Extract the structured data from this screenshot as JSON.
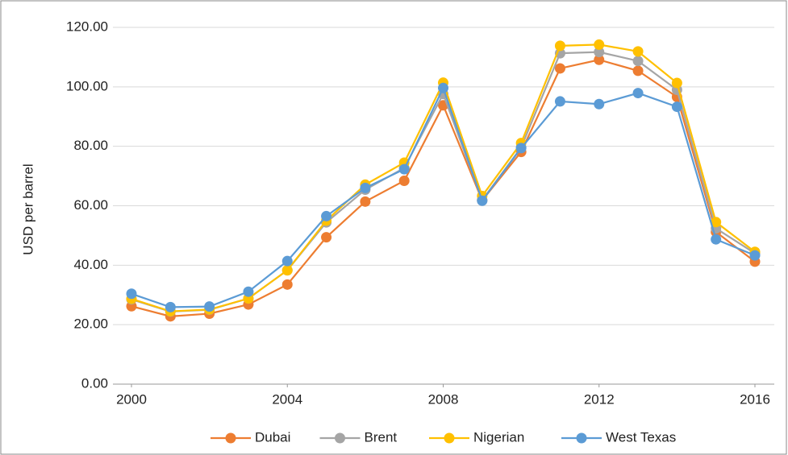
{
  "chart_data": {
    "type": "line",
    "y_label": "USD per barrel",
    "x": [
      2000,
      2001,
      2002,
      2003,
      2004,
      2005,
      2006,
      2007,
      2008,
      2009,
      2010,
      2011,
      2012,
      2013,
      2014,
      2015,
      2016
    ],
    "xlim": [
      2000,
      2016
    ],
    "xticks": [
      2000,
      2004,
      2008,
      2012,
      2016
    ],
    "ylim": [
      0,
      120
    ],
    "yticks": [
      {
        "value": 0,
        "label": "0.00"
      },
      {
        "value": 20,
        "label": "20.00"
      },
      {
        "value": 40,
        "label": "40.00"
      },
      {
        "value": 60,
        "label": "60.00"
      },
      {
        "value": 80,
        "label": "80.00"
      },
      {
        "value": 100,
        "label": "100.00"
      },
      {
        "value": 120,
        "label": "120.00"
      }
    ],
    "grid": true,
    "legend": "bottom",
    "series": [
      {
        "name": "Dubai",
        "color": "#ed7d31",
        "values": [
          26.2,
          22.8,
          23.7,
          26.8,
          33.5,
          49.4,
          61.4,
          68.4,
          93.8,
          61.8,
          78.1,
          106.2,
          109.1,
          105.4,
          96.6,
          51.2,
          41.2
        ]
      },
      {
        "name": "Brent",
        "color": "#a5a5a5",
        "values": [
          28.5,
          24.4,
          25.0,
          28.8,
          38.3,
          54.4,
          65.4,
          72.7,
          97.6,
          61.9,
          79.6,
          111.3,
          111.7,
          108.7,
          99.0,
          52.4,
          44.0
        ]
      },
      {
        "name": "Nigerian",
        "color": "#ffc000",
        "values": [
          28.7,
          24.5,
          25.1,
          28.8,
          38.3,
          55.0,
          67.1,
          74.5,
          101.4,
          63.3,
          81.1,
          113.8,
          114.2,
          111.9,
          101.3,
          54.5,
          44.5
        ]
      },
      {
        "name": "West Texas",
        "color": "#5b9bd5",
        "values": [
          30.4,
          25.9,
          26.1,
          31.1,
          41.4,
          56.5,
          66.0,
          72.3,
          99.6,
          61.7,
          79.4,
          95.1,
          94.2,
          97.9,
          93.3,
          48.7,
          43.3
        ]
      }
    ]
  }
}
